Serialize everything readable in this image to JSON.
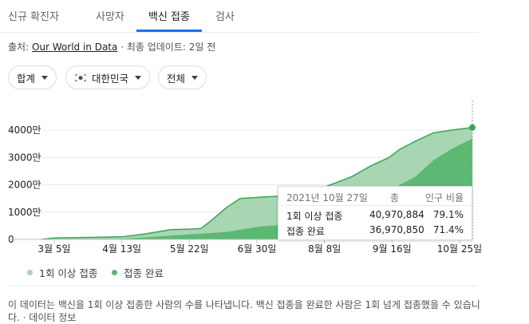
{
  "tabs": [
    {
      "label": "신규 확진자"
    },
    {
      "label": "사망자"
    },
    {
      "label": "백신 접종",
      "active": true
    },
    {
      "label": "검사"
    }
  ],
  "source": {
    "prefix": "출처: ",
    "link": "Our World in Data",
    "suffix": " · 최종 업데이트: 2일 전"
  },
  "filters": {
    "metric": "합계",
    "region": "대한민국",
    "range": "전체"
  },
  "colors": {
    "one_dose": "#a8d5b2",
    "full": "#5bb974",
    "accent": "#1a73e8"
  },
  "chart_data": {
    "type": "area",
    "y_ticks": [
      "4000만",
      "3000만",
      "2000만",
      "1000만",
      "0"
    ],
    "x_ticks": [
      "3월 5일",
      "4월 13일",
      "5월 22일",
      "6월 30일",
      "8월 8일",
      "9월 16일",
      "10월 25일"
    ],
    "ylim": [
      0,
      45000000
    ],
    "series": [
      {
        "name": "1회 이상 접종",
        "color": "#a8d5b2",
        "points": [
          [
            "2021-02-26",
            0
          ],
          [
            "2021-03-05",
            500000
          ],
          [
            "2021-03-20",
            700000
          ],
          [
            "2021-04-01",
            800000
          ],
          [
            "2021-04-13",
            1000000
          ],
          [
            "2021-04-25",
            2000000
          ],
          [
            "2021-05-10",
            3600000
          ],
          [
            "2021-05-22",
            3800000
          ],
          [
            "2021-05-27",
            4000000
          ],
          [
            "2021-06-02",
            7000000
          ],
          [
            "2021-06-10",
            11500000
          ],
          [
            "2021-06-18",
            15000000
          ],
          [
            "2021-06-30",
            15500000
          ],
          [
            "2021-07-15",
            16000000
          ],
          [
            "2021-07-27",
            17000000
          ],
          [
            "2021-08-08",
            20000000
          ],
          [
            "2021-08-20",
            23000000
          ],
          [
            "2021-08-31",
            27000000
          ],
          [
            "2021-09-10",
            30000000
          ],
          [
            "2021-09-16",
            33000000
          ],
          [
            "2021-09-25",
            36000000
          ],
          [
            "2021-10-05",
            39000000
          ],
          [
            "2021-10-15",
            40000000
          ],
          [
            "2021-10-27",
            40970884
          ]
        ]
      },
      {
        "name": "접종 완료",
        "color": "#5bb974",
        "points": [
          [
            "2021-02-26",
            0
          ],
          [
            "2021-03-20",
            50000
          ],
          [
            "2021-04-13",
            200000
          ],
          [
            "2021-05-22",
            1900000
          ],
          [
            "2021-06-10",
            2700000
          ],
          [
            "2021-06-30",
            4800000
          ],
          [
            "2021-07-15",
            5500000
          ],
          [
            "2021-07-27",
            6000000
          ],
          [
            "2021-08-08",
            8000000
          ],
          [
            "2021-08-20",
            11000000
          ],
          [
            "2021-08-31",
            13500000
          ],
          [
            "2021-09-16",
            20000000
          ],
          [
            "2021-09-25",
            23000000
          ],
          [
            "2021-10-05",
            29000000
          ],
          [
            "2021-10-15",
            33000000
          ],
          [
            "2021-10-27",
            36970850
          ]
        ]
      }
    ]
  },
  "tooltip": {
    "date": "2021년 10월 27일",
    "col_count": "총",
    "col_pct": "인구 비율",
    "rows": [
      {
        "label": "1회 이상 접종",
        "count": "40,970,884",
        "pct": "79.1%"
      },
      {
        "label": "접종 완료",
        "count": "36,970,850",
        "pct": "71.4%"
      }
    ]
  },
  "legend": [
    {
      "label": "1회 이상 접종",
      "color": "#a8d5b2"
    },
    {
      "label": "접종 완료",
      "color": "#5bb974"
    }
  ],
  "note": "이 데이터는 백신을 1회 이상 접종한 사람의 수를 나타냅니다. 백신 접종을 완료한 사람은 1회 넘게 접종했을 수 있습니다. · 데이터 정보"
}
